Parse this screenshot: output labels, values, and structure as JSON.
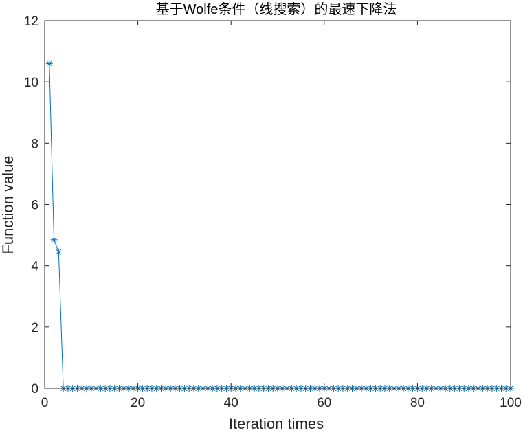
{
  "chart_data": {
    "type": "line",
    "title": "基于Wolfe条件（线搜索）的最速下降法",
    "xlabel": "Iteration times",
    "ylabel": "Function value",
    "xlim": [
      0,
      100
    ],
    "ylim": [
      0,
      12
    ],
    "xticks": [
      0,
      20,
      40,
      60,
      80,
      100
    ],
    "yticks": [
      0,
      2,
      4,
      6,
      8,
      10,
      12
    ],
    "grid": false,
    "box": true,
    "marker": "asterisk",
    "series_color": "#0072BD",
    "axis_color": "#262626",
    "series": [
      {
        "x": [
          1,
          2,
          3,
          4,
          5,
          6,
          7,
          8,
          9,
          10,
          11,
          12,
          13,
          14,
          15,
          16,
          17,
          18,
          19,
          20,
          21,
          22,
          23,
          24,
          25,
          26,
          27,
          28,
          29,
          30,
          31,
          32,
          33,
          34,
          35,
          36,
          37,
          38,
          39,
          40,
          41,
          42,
          43,
          44,
          45,
          46,
          47,
          48,
          49,
          50,
          51,
          52,
          53,
          54,
          55,
          56,
          57,
          58,
          59,
          60,
          61,
          62,
          63,
          64,
          65,
          66,
          67,
          68,
          69,
          70,
          71,
          72,
          73,
          74,
          75,
          76,
          77,
          78,
          79,
          80,
          81,
          82,
          83,
          84,
          85,
          86,
          87,
          88,
          89,
          90,
          91,
          92,
          93,
          94,
          95,
          96,
          97,
          98,
          99,
          100
        ],
        "values": [
          10.6,
          4.85,
          4.45,
          0,
          0,
          0,
          0,
          0,
          0,
          0,
          0,
          0,
          0,
          0,
          0,
          0,
          0,
          0,
          0,
          0,
          0,
          0,
          0,
          0,
          0,
          0,
          0,
          0,
          0,
          0,
          0,
          0,
          0,
          0,
          0,
          0,
          0,
          0,
          0,
          0,
          0,
          0,
          0,
          0,
          0,
          0,
          0,
          0,
          0,
          0,
          0,
          0,
          0,
          0,
          0,
          0,
          0,
          0,
          0,
          0,
          0,
          0,
          0,
          0,
          0,
          0,
          0,
          0,
          0,
          0,
          0,
          0,
          0,
          0,
          0,
          0,
          0,
          0,
          0,
          0,
          0,
          0,
          0,
          0,
          0,
          0,
          0,
          0,
          0,
          0,
          0,
          0,
          0,
          0,
          0,
          0,
          0,
          0,
          0,
          0
        ]
      }
    ]
  }
}
